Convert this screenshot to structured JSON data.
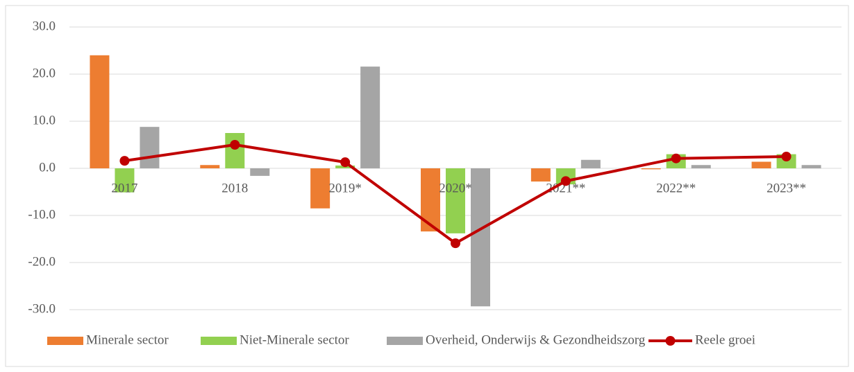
{
  "chart_data": {
    "type": "bar_line",
    "categories": [
      "2017",
      "2018",
      "2019*",
      "2020*",
      "2021**",
      "2022**",
      "2023**"
    ],
    "series": [
      {
        "name": "Minerale sector",
        "type": "bar",
        "color": "#ed7d31",
        "values": [
          24.0,
          0.7,
          -8.5,
          -13.4,
          -2.8,
          -0.2,
          1.4
        ]
      },
      {
        "name": "Niet-Minerale sector",
        "type": "bar",
        "color": "#92d050",
        "values": [
          -5.1,
          7.5,
          0.6,
          -13.8,
          -3.4,
          3.0,
          3.0
        ]
      },
      {
        "name": "Overheid, Onderwijs & Gezondheidszorg",
        "type": "bar",
        "color": "#a5a5a5",
        "values": [
          8.8,
          -1.6,
          21.6,
          -29.3,
          1.8,
          0.7,
          0.7
        ]
      },
      {
        "name": "Reele groei",
        "type": "line",
        "color": "#c00000",
        "values": [
          1.6,
          5.0,
          1.3,
          -15.9,
          -2.7,
          2.1,
          2.5
        ]
      }
    ],
    "ylim": [
      -30,
      30
    ],
    "yticks": [
      {
        "value": -30,
        "label": "-30.0"
      },
      {
        "value": -20,
        "label": "-20.0"
      },
      {
        "value": -10,
        "label": "-10.0"
      },
      {
        "value": 0,
        "label": "0.0"
      },
      {
        "value": 10,
        "label": "10.0"
      },
      {
        "value": 20,
        "label": "20.0"
      },
      {
        "value": 30,
        "label": "30.0"
      }
    ],
    "grid": true,
    "legend": "bottom"
  }
}
